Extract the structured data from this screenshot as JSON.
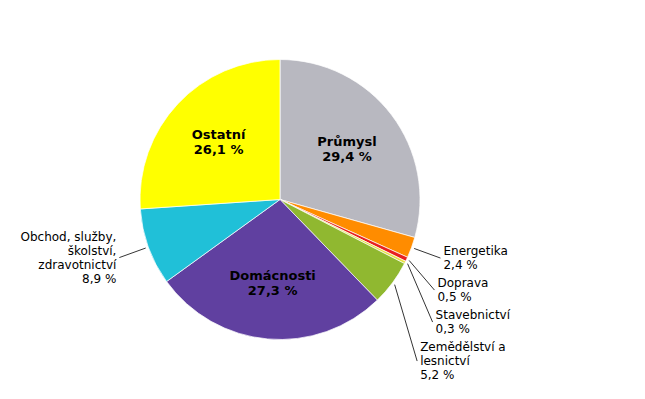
{
  "chart_data": {
    "type": "pie",
    "categories": [
      "Průmysl",
      "Energetika",
      "Doprava",
      "Stavebnictví",
      "Zemědělství a\nlesnictví",
      "Domácnosti",
      "Obchod, služby,\nškolství,\nzdravotnictví",
      "Ostatní"
    ],
    "values": [
      29.4,
      2.4,
      0.5,
      0.3,
      5.2,
      27.3,
      8.9,
      26.1
    ],
    "value_labels": [
      "29,4 %",
      "2,4 %",
      "0,5 %",
      "0,3 %",
      "5,2 %",
      "27,3 %",
      "8,9 %",
      "26,1 %"
    ],
    "colors": [
      "#b8b8c0",
      "#ff8c00",
      "#e82020",
      "#e8e040",
      "#90b830",
      "#6040a0",
      "#20c0d8",
      "#ffff00"
    ],
    "data_labels": true
  }
}
